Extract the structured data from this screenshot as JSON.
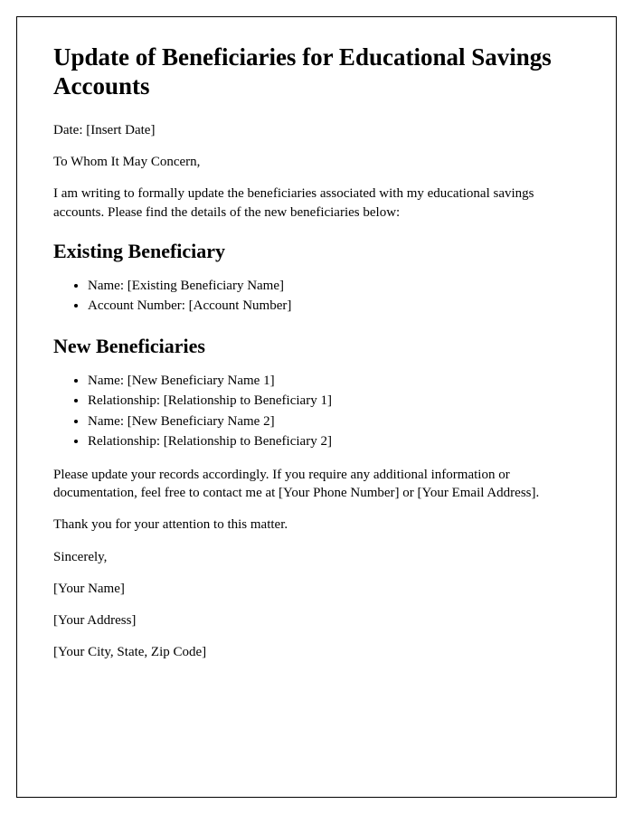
{
  "title": "Update of Beneficiaries for Educational Savings Accounts",
  "date_line": "Date: [Insert Date]",
  "salutation": "To Whom It May Concern,",
  "intro_paragraph": "I am writing to formally update the beneficiaries associated with my educational savings accounts. Please find the details of the new beneficiaries below:",
  "existing_beneficiary": {
    "heading": "Existing Beneficiary",
    "items": [
      "Name: [Existing Beneficiary Name]",
      "Account Number: [Account Number]"
    ]
  },
  "new_beneficiaries": {
    "heading": "New Beneficiaries",
    "items": [
      "Name: [New Beneficiary Name 1]",
      "Relationship: [Relationship to Beneficiary 1]",
      "Name: [New Beneficiary Name 2]",
      "Relationship: [Relationship to Beneficiary 2]"
    ]
  },
  "closing_paragraph": "Please update your records accordingly. If you require any additional information or documentation, feel free to contact me at [Your Phone Number] or [Your Email Address].",
  "thank_you": "Thank you for your attention to this matter.",
  "signoff": "Sincerely,",
  "signature_name": "[Your Name]",
  "signature_address": "[Your Address]",
  "signature_city": "[Your City, State, Zip Code]",
  "colors": {
    "text": "#000000",
    "background": "#ffffff",
    "border": "#000000"
  },
  "typography": {
    "title_fontsize": 27,
    "heading_fontsize": 22,
    "body_fontsize": 15,
    "font_family": "Georgia, serif"
  }
}
